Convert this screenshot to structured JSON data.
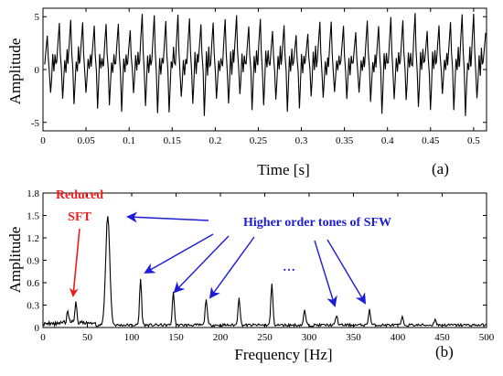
{
  "chart_data": [
    {
      "type": "line",
      "panel_label": "(a)",
      "xlabel": "Time [s]",
      "ylabel": "Amplitude",
      "xlim": [
        0,
        0.515
      ],
      "ylim": [
        -5.8,
        5.8
      ],
      "x_ticks": [
        "0",
        "0.05",
        "0.1",
        "0.15",
        "0.2",
        "0.25",
        "0.3",
        "0.35",
        "0.4",
        "0.45",
        "0.5"
      ],
      "x_tick_values": [
        0,
        0.05,
        0.1,
        0.15,
        0.2,
        0.25,
        0.3,
        0.35,
        0.4,
        0.45,
        0.5
      ],
      "y_ticks": [
        "-5",
        "0",
        "5"
      ],
      "y_tick_values": [
        -5,
        0,
        5
      ],
      "signal": {
        "period_s": 0.0137,
        "peak_range": [
          3.2,
          5.4
        ],
        "trough_range": [
          -4.4,
          -2.0
        ]
      }
    },
    {
      "type": "line",
      "panel_label": "(b)",
      "xlabel": "Frequency [Hz]",
      "ylabel": "Amplitude",
      "xlim": [
        0,
        500
      ],
      "ylim": [
        0,
        1.8
      ],
      "x_ticks": [
        "0",
        "50",
        "100",
        "150",
        "200",
        "250",
        "300",
        "350",
        "400",
        "450",
        "500"
      ],
      "x_tick_values": [
        0,
        50,
        100,
        150,
        200,
        250,
        300,
        350,
        400,
        450,
        500
      ],
      "y_ticks": [
        "0",
        "0.3",
        "0.6",
        "0.9",
        "1.2",
        "1.5",
        "1.8"
      ],
      "y_tick_values": [
        0,
        0.3,
        0.6,
        0.9,
        1.2,
        1.5,
        1.8
      ],
      "peaks": [
        {
          "f": 28,
          "a": 0.15
        },
        {
          "f": 37,
          "a": 0.3
        },
        {
          "f": 73,
          "a": 1.48
        },
        {
          "f": 110,
          "a": 0.62
        },
        {
          "f": 147,
          "a": 0.44
        },
        {
          "f": 184,
          "a": 0.36
        },
        {
          "f": 221,
          "a": 0.38
        },
        {
          "f": 258,
          "a": 0.56
        },
        {
          "f": 295,
          "a": 0.2
        },
        {
          "f": 331,
          "a": 0.13
        },
        {
          "f": 368,
          "a": 0.21
        },
        {
          "f": 405,
          "a": 0.1
        },
        {
          "f": 442,
          "a": 0.08
        }
      ],
      "annotations": {
        "reduced_line1": "Reduced",
        "reduced_line2": "SFT",
        "higher_order": "Higher order tones of SFW",
        "ellipsis": "…"
      },
      "colors": {
        "reduced": "#ee1c1c",
        "higher_order": "#1d1dd6"
      }
    }
  ]
}
